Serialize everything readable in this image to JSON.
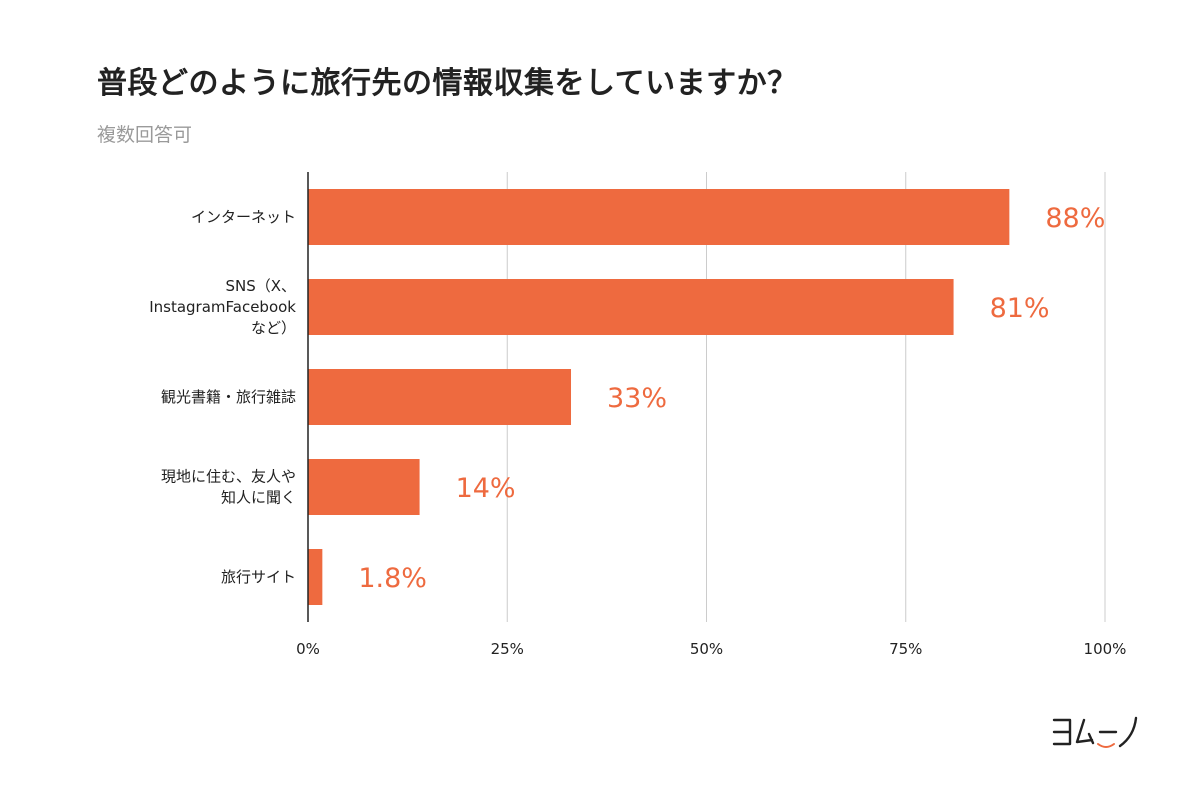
{
  "header": {
    "title": "普段どのように旅行先の情報収集をしていますか？",
    "subtitle": "複数回答可"
  },
  "colors": {
    "bar": "#EE6A3F",
    "label": "#EE6A3F",
    "grid": "#cccccc",
    "axis": "#222222"
  },
  "logo": {
    "icon": "yomu-no-logo"
  },
  "chart_data": {
    "type": "bar",
    "orientation": "horizontal",
    "categories": [
      [
        "インターネット"
      ],
      [
        "SNS（X、",
        "InstagramFacebook",
        "など）"
      ],
      [
        "観光書籍・旅行雑誌"
      ],
      [
        "現地に住む、友人や",
        "知人に聞く"
      ],
      [
        "旅行サイト"
      ]
    ],
    "values": [
      88,
      81,
      33,
      14,
      1.8
    ],
    "value_labels": [
      "88%",
      "81%",
      "33%",
      "14%",
      "1.8%"
    ],
    "xlim": [
      0,
      100
    ],
    "xticks": [
      0,
      25,
      50,
      75,
      100
    ],
    "xtick_labels": [
      "0%",
      "25%",
      "50%",
      "75%",
      "100%"
    ],
    "grid": true,
    "legend": "none"
  }
}
